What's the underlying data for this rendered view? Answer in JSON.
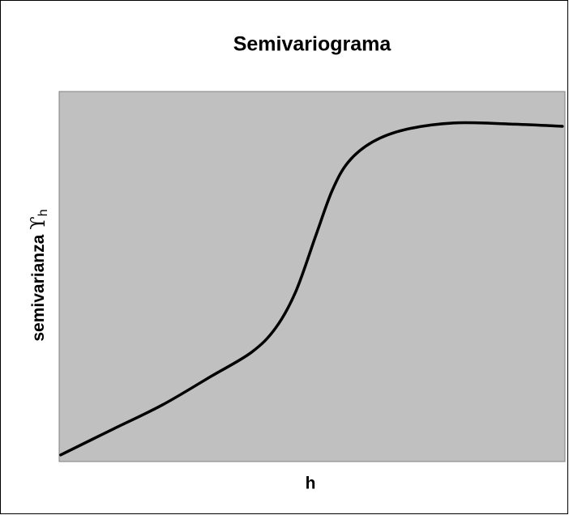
{
  "chart_data": {
    "type": "line",
    "title": "Semivariograma",
    "xlabel": "h",
    "ylabel": "semivarianza",
    "ylabel_symbol": "ϒ",
    "ylabel_subscript": "h",
    "x": [
      0.3,
      10.7,
      20.4,
      30.0,
      38.0,
      42.8,
      46.8,
      50.8,
      54.0,
      57.2,
      62.0,
      68.4,
      78.0,
      89.3,
      99.5
    ],
    "series": [
      {
        "name": "semivarianza",
        "color": "#000000",
        "values": [
          1.8,
          8.8,
          15.3,
          23.0,
          29.5,
          36.1,
          46.0,
          61.3,
          73.3,
          81.0,
          86.4,
          89.7,
          91.5,
          91.2,
          90.6
        ]
      }
    ],
    "xlim": [
      0,
      100
    ],
    "ylim": [
      0,
      100
    ],
    "plot_background": "#c0c0c0"
  }
}
